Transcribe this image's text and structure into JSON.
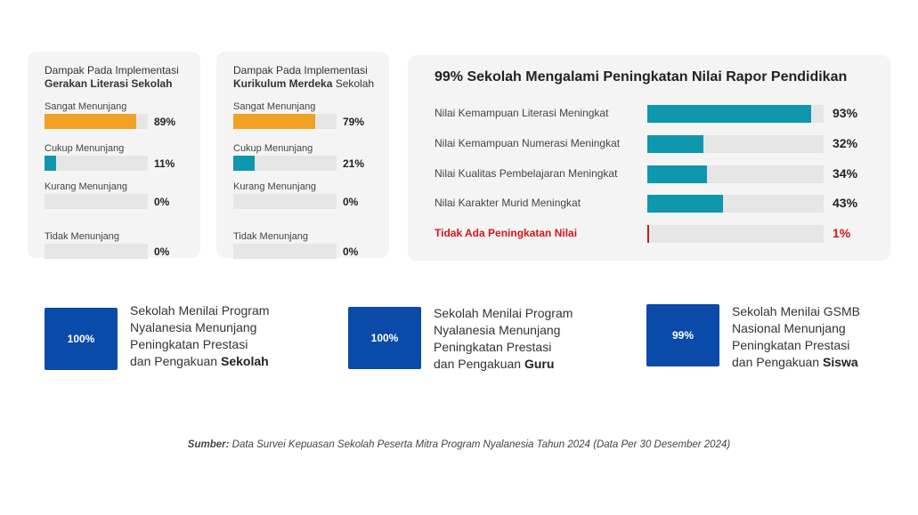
{
  "chart_data": [
    {
      "type": "bar",
      "title_line1": "Dampak Pada Implementasi",
      "title_bold": "Gerakan Literasi Sekolah",
      "title_rest": "",
      "categories": [
        "Sangat Menunjang",
        "Cukup Menunjang",
        "Kurang Menunjang",
        "Tidak Menunjang"
      ],
      "values": [
        89,
        11,
        0,
        0
      ],
      "value_labels": [
        "89%",
        "11%",
        "0%",
        "0%"
      ],
      "colors": [
        "#f0a224",
        "#0e97ad",
        "#e6e6e6",
        "#e6e6e6"
      ],
      "ylim": [
        0,
        100
      ]
    },
    {
      "type": "bar",
      "title_line1": "Dampak Pada Implementasi",
      "title_bold": "Kurikulum Merdeka",
      "title_rest": " Sekolah",
      "categories": [
        "Sangat Menunjang",
        "Cukup Menunjang",
        "Kurang Menunjang",
        "Tidak Menunjang"
      ],
      "values": [
        79,
        21,
        0,
        0
      ],
      "value_labels": [
        "79%",
        "21%",
        "0%",
        "0%"
      ],
      "colors": [
        "#f0a224",
        "#0e97ad",
        "#e6e6e6",
        "#e6e6e6"
      ],
      "ylim": [
        0,
        100
      ]
    },
    {
      "type": "bar",
      "title": "99% Sekolah Mengalami Peningkatan Nilai Rapor Pendidikan",
      "categories": [
        "Nilai Kemampuan Literasi Meningkat",
        "Nilai Kemampuan Numerasi Meningkat",
        "Nilai Kualitas Pembelajaran Meningkat",
        "Nilai Karakter Murid Meningkat",
        "Tidak Ada Peningkatan Nilai"
      ],
      "values": [
        93,
        32,
        34,
        43,
        1
      ],
      "value_labels": [
        "93%",
        "32%",
        "34%",
        "43%",
        "1%"
      ],
      "colors": [
        "#0e97ad",
        "#0e97ad",
        "#0e97ad",
        "#0e97ad",
        "#d4151d"
      ],
      "ylim": [
        0,
        100
      ]
    }
  ],
  "stats": [
    {
      "value": "100%",
      "line1": "Sekolah Menilai Program",
      "line2": "Nyalanesia Menunjang",
      "line3": "Peningkatan Prestasi",
      "line4_prefix": "dan Pengakuan ",
      "line4_bold": "Sekolah"
    },
    {
      "value": "100%",
      "line1": "Sekolah Menilai Program",
      "line2": "Nyalanesia Menunjang",
      "line3": "Peningkatan Prestasi",
      "line4_prefix": "dan Pengakuan ",
      "line4_bold": "Guru"
    },
    {
      "value": "99%",
      "line1": "Sekolah Menilai GSMB",
      "line2": "Nasional Menunjang",
      "line3": "Peningkatan Prestasi",
      "line4_prefix": "dan Pengakuan ",
      "line4_bold": "Siswa"
    }
  ],
  "source": {
    "label": "Sumber:",
    "text": " Data Survei Kepuasan Sekolah Peserta Mitra Program Nyalanesia Tahun 2024 (Data Per 30 Desember 2024)"
  },
  "colors": {
    "accent_orange": "#f0a224",
    "accent_teal": "#0e97ad",
    "accent_red": "#d4151d",
    "brand_blue": "#0a4aa8"
  }
}
